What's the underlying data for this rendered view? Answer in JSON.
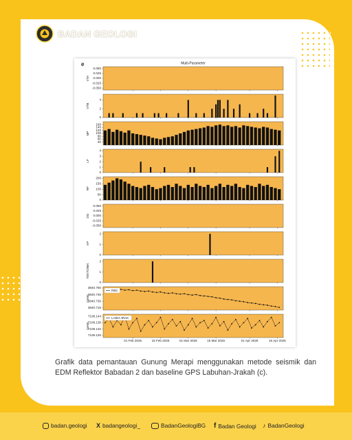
{
  "header": {
    "title": "BADAN GEOLOGI"
  },
  "figure": {
    "label": "e",
    "title": "Multi-Parameter",
    "xlim": [
      "2025-01-17",
      "2025-04-18"
    ],
    "xticks": [
      {
        "value": "2025-02-01",
        "label": "01 Feb 2025"
      },
      {
        "value": "2025-02-15",
        "label": "15 Feb 2025"
      },
      {
        "value": "2025-03-01",
        "label": "01 Mar 2025"
      },
      {
        "value": "2025-03-15",
        "label": "15 Mar 2025"
      },
      {
        "value": "2025-04-01",
        "label": "01 Apr 2025"
      },
      {
        "value": "2025-04-15",
        "label": "15 Apr 2025"
      }
    ],
    "x": [
      "2025-01-18",
      "2025-01-20",
      "2025-01-22",
      "2025-01-24",
      "2025-01-26",
      "2025-01-28",
      "2025-01-30",
      "2025-02-01",
      "2025-02-03",
      "2025-02-05",
      "2025-02-07",
      "2025-02-09",
      "2025-02-11",
      "2025-02-13",
      "2025-02-15",
      "2025-02-17",
      "2025-02-19",
      "2025-02-21",
      "2025-02-23",
      "2025-02-25",
      "2025-02-27",
      "2025-03-01",
      "2025-03-03",
      "2025-03-05",
      "2025-03-07",
      "2025-03-09",
      "2025-03-11",
      "2025-03-13",
      "2025-03-15",
      "2025-03-17",
      "2025-03-19",
      "2025-03-21",
      "2025-03-23",
      "2025-03-25",
      "2025-03-27",
      "2025-03-29",
      "2025-03-31",
      "2025-04-02",
      "2025-04-04",
      "2025-04-06",
      "2025-04-08",
      "2025-04-10",
      "2025-04-12",
      "2025-04-14",
      "2025-04-16"
    ]
  },
  "chart_data": [
    {
      "type": "bar",
      "ylabel": "VTA",
      "ylim": [
        -0.06,
        0.06
      ],
      "yticks": [
        {
          "value": 0.05,
          "label": "0.050"
        },
        {
          "value": 0.025,
          "label": "0.025"
        },
        {
          "value": 0,
          "label": "0.000"
        },
        {
          "value": -0.025,
          "label": "-0.025"
        },
        {
          "value": -0.05,
          "label": "-0.050"
        }
      ],
      "color": "#111111",
      "series": []
    },
    {
      "type": "bar",
      "ylabel": "VTB",
      "ylim": [
        0,
        5.3
      ],
      "yticks": [
        0,
        2,
        4
      ],
      "color": "#111111",
      "series": [
        {
          "x": [
            "2025-01-20",
            "2025-01-22",
            "2025-01-27",
            "2025-02-03",
            "2025-02-06",
            "2025-02-12",
            "2025-02-14",
            "2025-02-18",
            "2025-02-24",
            "2025-03-01",
            "2025-03-05",
            "2025-03-09",
            "2025-03-13",
            "2025-03-15",
            "2025-03-16",
            "2025-03-17",
            "2025-03-19",
            "2025-03-21",
            "2025-03-24",
            "2025-03-27",
            "2025-04-01",
            "2025-04-05",
            "2025-04-08",
            "2025-04-10",
            "2025-04-14"
          ],
          "values": [
            1,
            1,
            1,
            1,
            1,
            1,
            1,
            1,
            1,
            4,
            1,
            1,
            2,
            3,
            4,
            4,
            2,
            4,
            2,
            3,
            1,
            1,
            2,
            1,
            5
          ]
        }
      ]
    },
    {
      "type": "bar",
      "ylabel": "MP",
      "ylim": [
        20,
        180
      ],
      "yticks": [
        40,
        60,
        80,
        100,
        120,
        140,
        160
      ],
      "color": "#111111",
      "series": [
        {
          "values": [
            120,
            130,
            110,
            125,
            115,
            105,
            120,
            100,
            95,
            90,
            85,
            80,
            70,
            65,
            60,
            70,
            75,
            80,
            90,
            100,
            110,
            120,
            125,
            130,
            135,
            140,
            150,
            145,
            155,
            160,
            150,
            155,
            145,
            150,
            140,
            155,
            150,
            145,
            140,
            135,
            145,
            140,
            130,
            125,
            120
          ]
        }
      ]
    },
    {
      "type": "bar",
      "ylabel": "LF",
      "ylim": [
        0,
        4.3
      ],
      "yticks": [
        0,
        1,
        2,
        3,
        4
      ],
      "color": "#111111",
      "series": [
        {
          "x": [
            "2025-02-05",
            "2025-02-10",
            "2025-02-17",
            "2025-03-02",
            "2025-03-04",
            "2025-04-10",
            "2025-04-14",
            "2025-04-16"
          ],
          "values": [
            2,
            1,
            1,
            1,
            1,
            1,
            3,
            4
          ]
        }
      ]
    },
    {
      "type": "bar",
      "ylabel": "RF",
      "ylim": [
        0,
        215
      ],
      "yticks": [
        0,
        50,
        100,
        150,
        200
      ],
      "color": "#111111",
      "series": [
        {
          "values": [
            140,
            160,
            180,
            200,
            190,
            170,
            150,
            130,
            120,
            110,
            130,
            140,
            120,
            100,
            110,
            130,
            140,
            120,
            150,
            130,
            110,
            140,
            120,
            150,
            130,
            120,
            140,
            110,
            130,
            150,
            120,
            140,
            130,
            150,
            120,
            110,
            140,
            130,
            120,
            150,
            130,
            140,
            120,
            110,
            100
          ]
        }
      ]
    },
    {
      "type": "bar",
      "ylabel": "DG",
      "ylim": [
        -0.06,
        0.06
      ],
      "yticks": [
        {
          "value": 0.05,
          "label": "0.050"
        },
        {
          "value": 0.025,
          "label": "0.025"
        },
        {
          "value": 0,
          "label": "0.000"
        },
        {
          "value": -0.025,
          "label": "-0.025"
        },
        {
          "value": -0.05,
          "label": "-0.050"
        }
      ],
      "color": "#111111",
      "series": []
    },
    {
      "type": "bar",
      "ylabel": "AP",
      "ylim": [
        0,
        2.2
      ],
      "yticks": [
        0,
        1,
        2
      ],
      "color": "#111111",
      "series": [
        {
          "x": [
            "2025-03-12"
          ],
          "values": [
            2
          ]
        }
      ]
    },
    {
      "type": "bar",
      "ylabel": "TEKTONIK",
      "ylim": [
        0,
        2.2
      ],
      "yticks": [
        0,
        1,
        2
      ],
      "color": "#111111",
      "series": [
        {
          "x": [
            "2025-02-11"
          ],
          "values": [
            2
          ]
        }
      ]
    },
    {
      "type": "line",
      "ylabel": "meter",
      "ylim": [
        3840.71,
        3840.763
      ],
      "yticks": [
        {
          "value": 3840.715,
          "label": "3840.715"
        },
        {
          "value": 3840.73,
          "label": "3840.730"
        },
        {
          "value": 3840.745,
          "label": "3840.745"
        },
        {
          "value": 3840.76,
          "label": "3840.760"
        }
      ],
      "color": "#111111",
      "series": [
        {
          "name": "RB2",
          "values": [
            3840.758,
            3840.757,
            3840.758,
            3840.756,
            3840.757,
            3840.755,
            3840.756,
            3840.754,
            3840.755,
            3840.753,
            3840.752,
            3840.753,
            3840.751,
            3840.75,
            3840.751,
            3840.749,
            3840.748,
            3840.749,
            3840.747,
            3840.746,
            3840.747,
            3840.745,
            3840.744,
            3840.745,
            3840.743,
            3840.742,
            3840.741,
            3840.74,
            3840.738,
            3840.737,
            3840.735,
            3840.734,
            3840.733,
            3840.731,
            3840.73,
            3840.729,
            3840.727,
            3840.726,
            3840.725,
            3840.723,
            3840.722,
            3840.721,
            3840.719,
            3840.718,
            3840.716
          ]
        }
      ]
    },
    {
      "type": "line",
      "ylabel": "meter",
      "ylim": [
        7108.124,
        7108.146
      ],
      "yticks": [
        7108.126,
        7108.132,
        7108.138,
        7108.144
      ],
      "color": "#111111",
      "series": [
        {
          "name": "LABH-JRAK",
          "values": [
            7108.138,
            7108.142,
            7108.134,
            7108.14,
            7108.136,
            7108.144,
            7108.132,
            7108.138,
            7108.142,
            7108.13,
            7108.136,
            7108.14,
            7108.134,
            7108.138,
            7108.143,
            7108.132,
            7108.137,
            7108.141,
            7108.135,
            7108.139,
            7108.131,
            7108.136,
            7108.142,
            7108.134,
            7108.138,
            7108.14,
            7108.133,
            7108.137,
            7108.143,
            7108.135,
            7108.139,
            7108.131,
            7108.137,
            7108.141,
            7108.134,
            7108.138,
            7108.142,
            7108.133,
            7108.136,
            7108.14,
            7108.134,
            7108.139,
            7108.143,
            7108.135,
            7108.138
          ]
        }
      ]
    }
  ],
  "caption": "Grafik data pemantauan Gunung Merapi menggunakan metode seismik dan EDM Reflektor Babadan 2 dan baseline GPS Labuhan-Jrakah (c).",
  "social": [
    "badan.geologi",
    "badangeologi_",
    "BadanGeologiBG",
    "Badan Geologi",
    "BadanGeologi"
  ]
}
